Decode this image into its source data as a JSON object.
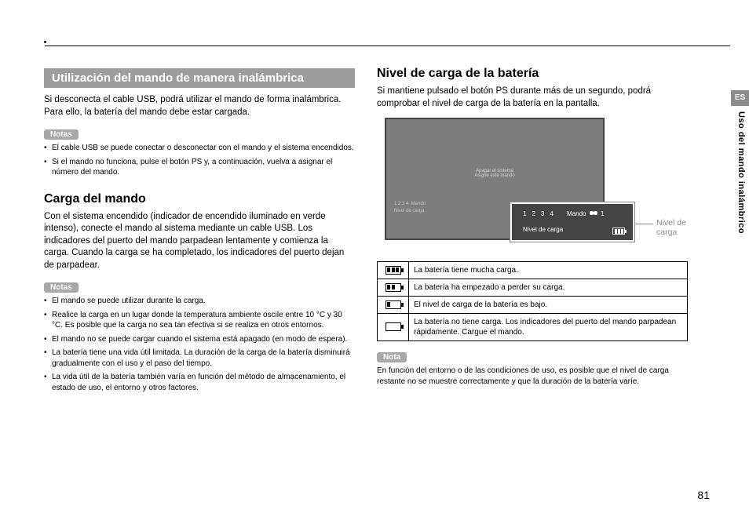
{
  "page": {
    "number": "81"
  },
  "side": {
    "code": "ES",
    "section": "Uso del mando inalámbrico"
  },
  "left": {
    "section_title": "Utilización del mando de manera inalámbrica",
    "intro": "Si desconecta el cable USB, podrá utilizar el mando de forma inalámbrica. Para ello, la batería del mando debe estar cargada.",
    "notes_label_1": "Notas",
    "notes_1": [
      "El cable USB se puede conectar o desconectar con el mando y el sistema encendidos.",
      "Si el mando no funciona, pulse el botón PS y, a continuación, vuelva a asignar el número del mando."
    ],
    "heading_charge": "Carga del mando",
    "charge_body": "Con el sistema encendido (indicador de encendido iluminado en verde intenso), conecte el mando al sistema mediante un cable USB. Los indicadores del puerto del mando parpadean lentamente y comienza la carga. Cuando la carga se ha completado, los indicadores del puerto dejan de parpadear.",
    "notes_label_2": "Notas",
    "notes_2": [
      "El mando se puede utilizar durante la carga.",
      "Realice la carga en un lugar donde la temperatura ambiente oscile entre 10 °C y 30 °C. Es posible que la carga no sea tan efectiva si se realiza en otros entornos.",
      "El mando no se puede cargar cuando el sistema está apagado (en modo de espera).",
      "La batería tiene una vida útil limitada. La duración de la carga de la batería disminuirá gradualmente con el uso y el paso del tiempo.",
      "La vida útil de la batería también varía en función del método de almacenamiento, el estado de uso, el entorno y otros factores."
    ]
  },
  "right": {
    "heading_level": "Nivel de carga de la batería",
    "level_body": "Si mantiene pulsado el botón PS durante más de un segundo, podrá comprobar el nivel de carga de la batería en la pantalla.",
    "screen": {
      "center_l1": "Apagar el sistema",
      "center_l2": "Asigne este mando",
      "bottom_l1": "Mando",
      "bottom_l2": "Nivel de carga"
    },
    "callout": {
      "numbers": "1234",
      "mando_label": "Mando",
      "mando_num": "1",
      "level_label": "Nivel de carga"
    },
    "callout_pointer": "Nivel de carga",
    "table": [
      {
        "bars": 3,
        "text": "La batería tiene mucha carga."
      },
      {
        "bars": 2,
        "text": "La batería ha empezado a perder su carga."
      },
      {
        "bars": 1,
        "text": "El nivel de carga de la batería es bajo."
      },
      {
        "bars": 0,
        "text": "La batería no tiene carga. Los indicadores del puerto del mando parpadean rápidamente. Cargue el mando."
      }
    ],
    "note_label": "Nota",
    "footnote": "En función del entorno o de las condiciones de uso, es posible que el nivel de carga restante no se muestre correctamente y que la duración de la batería varíe."
  }
}
